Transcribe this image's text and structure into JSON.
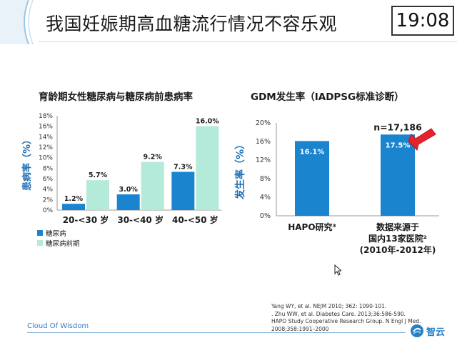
{
  "header": {
    "title": "我国妊娠期高血糖流行情况不容乐观",
    "timer": "19:08"
  },
  "left_chart_title": "育龄期女性糖尿病与糖尿病前患病率",
  "right_chart_title": "GDM发生率（IADPSG标准诊断）",
  "annotation_n": "n=17,186",
  "references": [
    "Yang WY, et al. NEJM 2010; 362: 1090-101.",
    ". Zhu WW, et al. Diabetes Care. 2013;36:586-590.",
    "HAPO Study Cooperative Research Group. N Engl J Med. 2008;358:1991–2000"
  ],
  "footer": {
    "left_text": "Cloud Of Wisdom",
    "logo_text": "智云"
  },
  "colors": {
    "diabetes": "#1b84cf",
    "prediabetes": "#b3ead9",
    "gdm": "#1b84cf",
    "arrow": "#e8222b"
  },
  "chart_data": [
    {
      "type": "bar",
      "title": "育龄期女性糖尿病与糖尿病前患病率",
      "ylabel": "患病率（%）",
      "xlabel": "",
      "categories": [
        "20-<30 岁",
        "30-<40 岁",
        "40-<50 岁"
      ],
      "series": [
        {
          "name": "糖尿病",
          "values": [
            1.2,
            3.0,
            7.3
          ],
          "labels": [
            "1.2%",
            "3.0%",
            "7.3%"
          ]
        },
        {
          "name": "糖尿病前期",
          "values": [
            5.7,
            9.2,
            16.0
          ],
          "labels": [
            "5.7%",
            "9.2%",
            "16.0%"
          ]
        }
      ],
      "ylim": [
        0,
        18
      ],
      "yticks": [
        "0%",
        "2%",
        "4%",
        "6%",
        "8%",
        "10%",
        "12%",
        "14%",
        "16%",
        "18%"
      ],
      "grid": false,
      "legend_position": "bottom-left"
    },
    {
      "type": "bar",
      "title": "GDM发生率（IADPSG标准诊断）",
      "ylabel": "发生率（%）",
      "xlabel": "",
      "categories": [
        "HAPO研究³",
        "数据来源于\n国内13家医院²\n(2010年-2012年)"
      ],
      "values": [
        16.1,
        17.5
      ],
      "labels": [
        "16.1%",
        "17.5%"
      ],
      "ylim": [
        0,
        20
      ],
      "yticks": [
        "0%",
        "4%",
        "8%",
        "12%",
        "16%",
        "20%"
      ],
      "grid": false
    }
  ]
}
